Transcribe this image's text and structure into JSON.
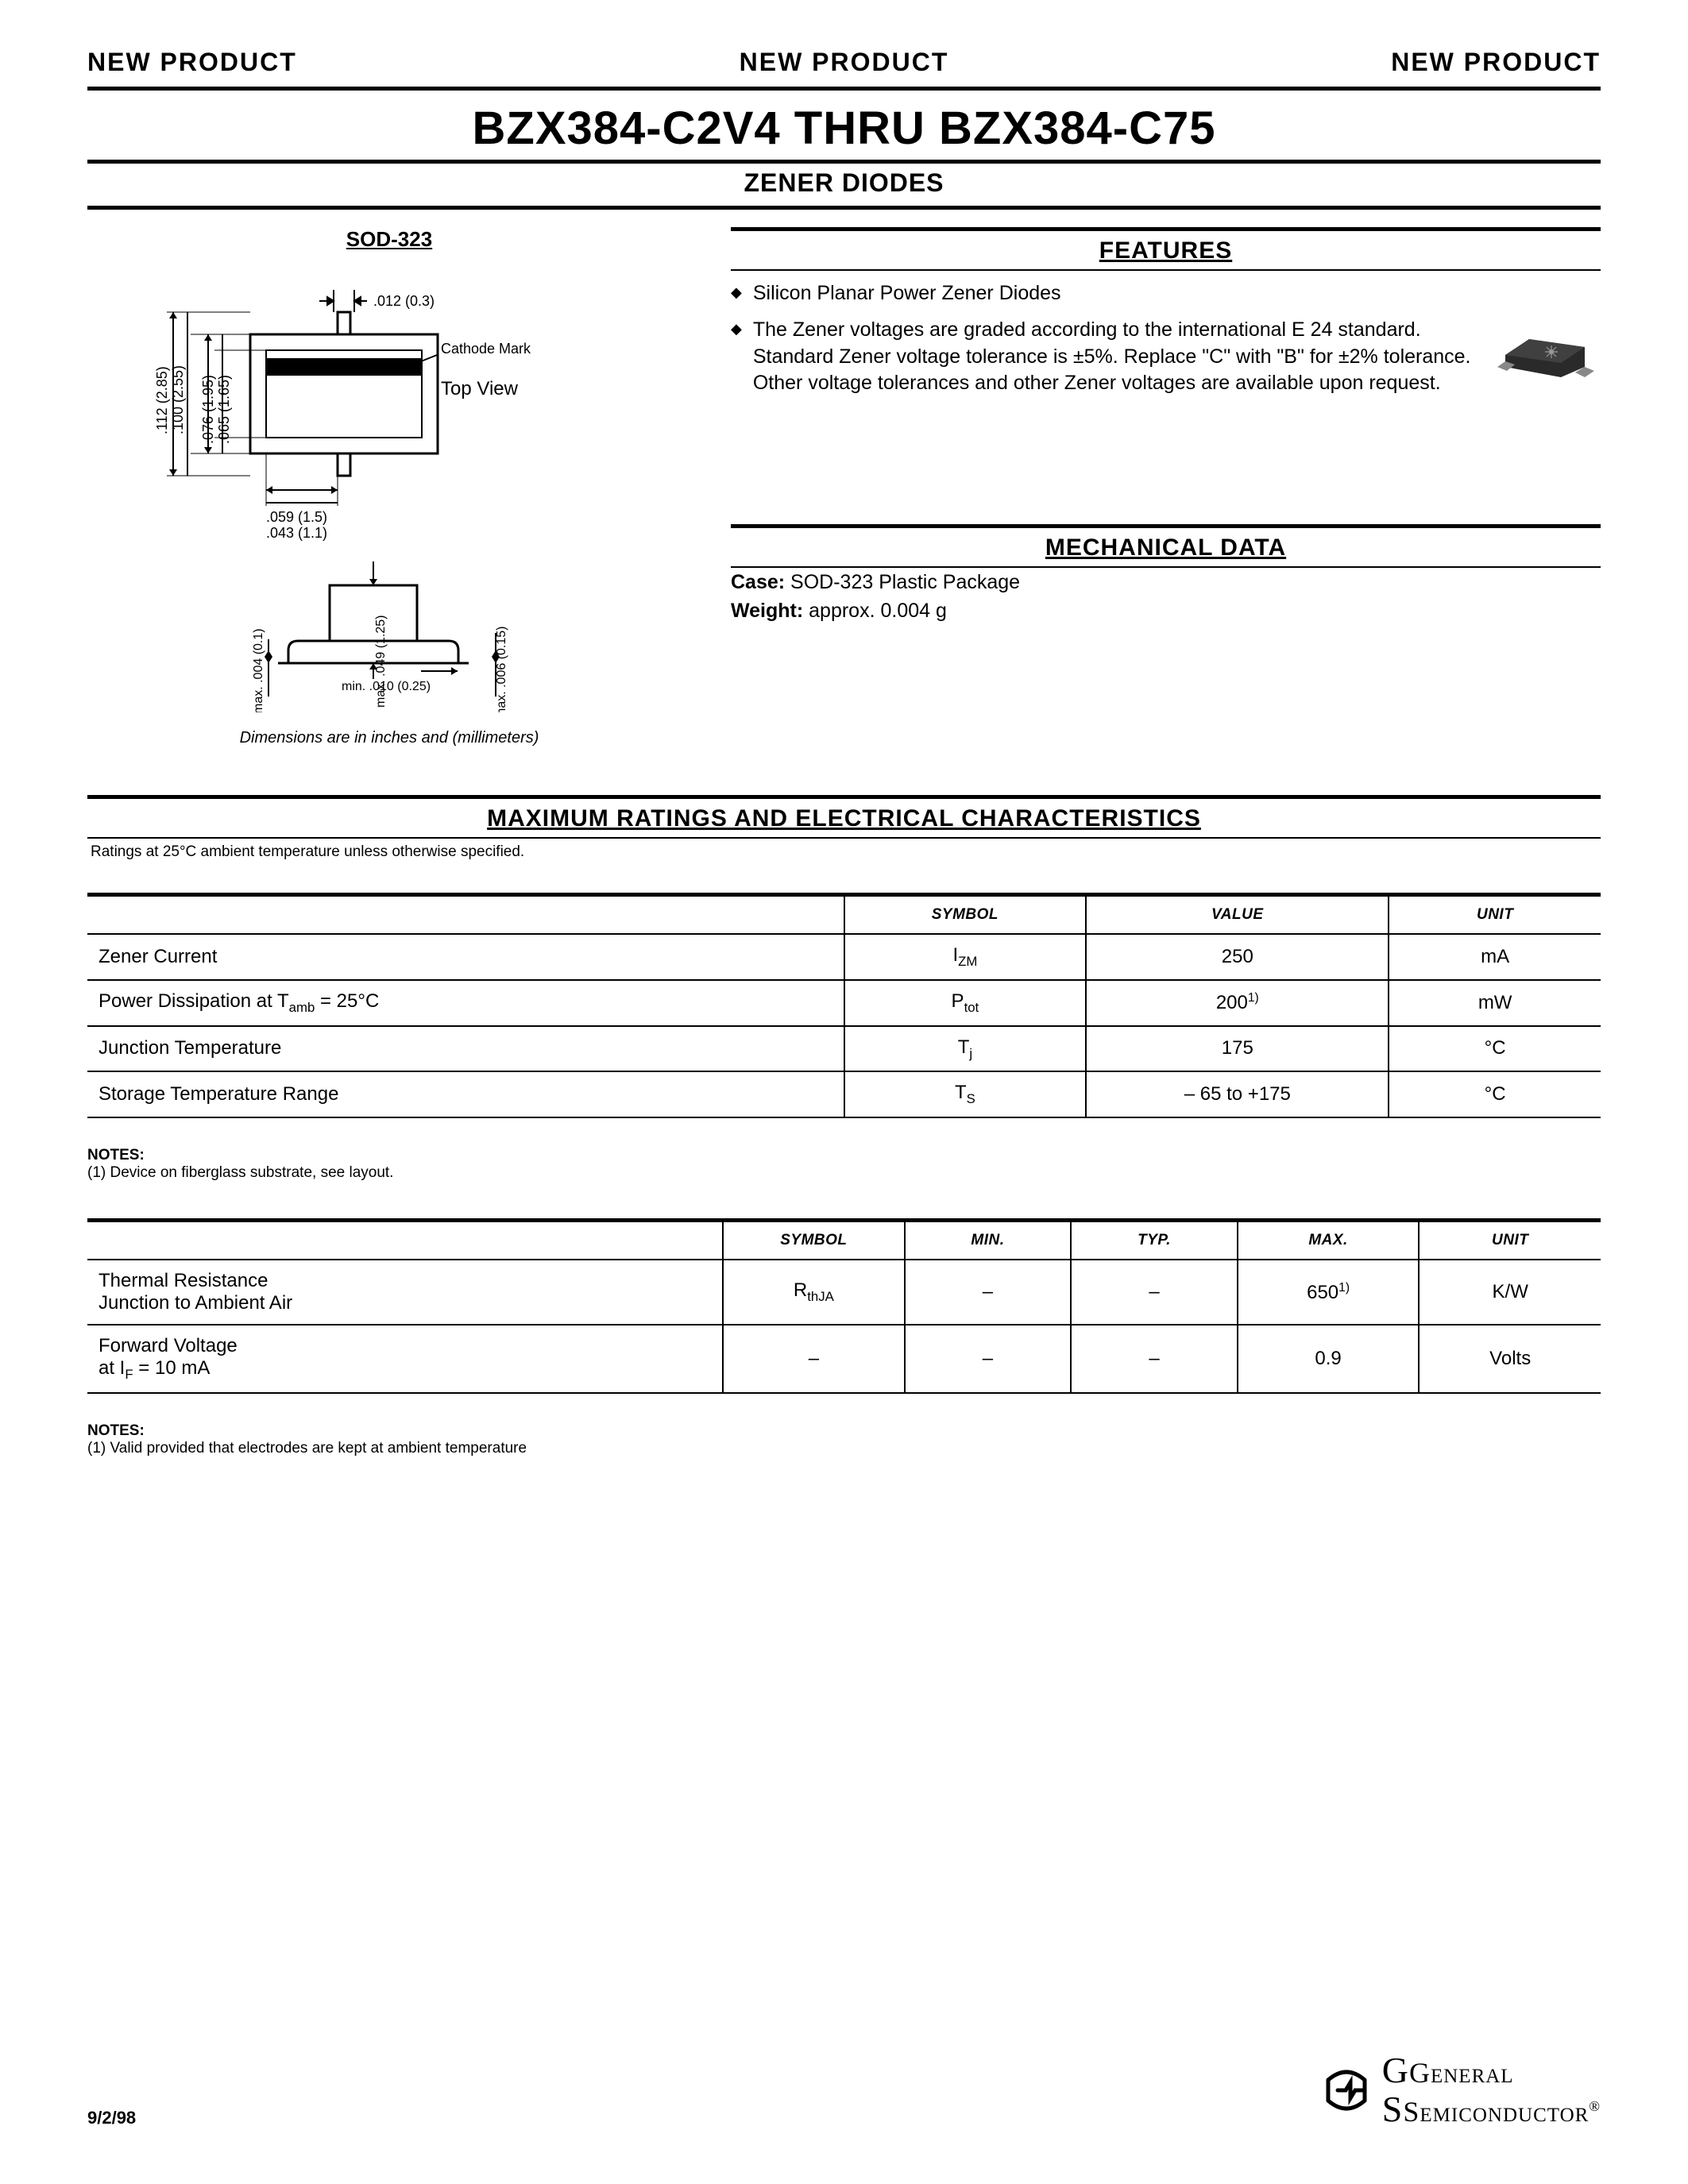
{
  "banner": {
    "left": "NEW PRODUCT",
    "center": "NEW PRODUCT",
    "right": "NEW PRODUCT"
  },
  "title": "BZX384-C2V4 THRU BZX384-C75",
  "subtitle": "ZENER DIODES",
  "package": {
    "label": "SOD-323",
    "top_view": "Top View",
    "cathode_mark": "Cathode Mark",
    "dims": {
      "d_012": ".012 (0.3)",
      "d_112": ".112 (2.85)",
      "d_100": ".100 (2.55)",
      "d_076": ".076 (1.95)",
      "d_065": ".065 (1.65)",
      "d_059": ".059 (1.5)",
      "d_043": ".043 (1.1)",
      "d_max004": "max. .004 (0.1)",
      "d_max049": "max. .049 (1.25)",
      "d_max006": "max. .006 (0.15)",
      "d_min010": "min. .010 (0.25)"
    },
    "dim_note": "Dimensions are in inches and (millimeters)"
  },
  "features": {
    "heading": "FEATURES",
    "items": [
      "Silicon Planar Power Zener Diodes",
      "The Zener voltages are graded according to the international E 24 standard. Standard Zener voltage tolerance is ±5%. Replace \"C\" with \"B\" for ±2% tolerance. Other voltage tolerances and other Zener voltages are available upon request."
    ]
  },
  "mechanical": {
    "heading": "MECHANICAL DATA",
    "case_label": "Case:",
    "case_value": "SOD-323 Plastic Package",
    "weight_label": "Weight:",
    "weight_value": "approx. 0.004 g"
  },
  "ratings": {
    "heading": "MAXIMUM RATINGS AND ELECTRICAL CHARACTERISTICS",
    "condition": "Ratings at 25°C ambient temperature unless otherwise specified.",
    "table1": {
      "columns": [
        "",
        "SYMBOL",
        "VALUE",
        "UNIT"
      ],
      "rows": [
        {
          "param": "Zener Current",
          "symbol_html": "I<span class='sub'>ZM</span>",
          "value": "250",
          "unit": "mA"
        },
        {
          "param_html": "Power Dissipation at T<span class='sub'>amb</span> = 25°C",
          "symbol_html": "P<span class='sub'>tot</span>",
          "value_html": "200<span class='sup'>1)</span>",
          "unit": "mW"
        },
        {
          "param": "Junction Temperature",
          "symbol_html": "T<span class='sub'>j</span>",
          "value": "175",
          "unit": "°C"
        },
        {
          "param": "Storage Temperature Range",
          "symbol_html": "T<span class='sub'>S</span>",
          "value": "– 65 to +175",
          "unit": "°C"
        }
      ]
    },
    "notes1": {
      "hd": "NOTES:",
      "n1": "(1) Device on fiberglass substrate, see layout."
    },
    "table2": {
      "columns": [
        "",
        "SYMBOL",
        "MIN.",
        "TYP.",
        "MAX.",
        "UNIT"
      ],
      "rows": [
        {
          "param_html": "Thermal Resistance<br>Junction to Ambient Air",
          "symbol_html": "R<span class='sub'>thJA</span>",
          "min": "–",
          "typ": "–",
          "max_html": "650<span class='sup'>1)</span>",
          "unit": "K/W"
        },
        {
          "param_html": "Forward Voltage<br>at I<span class='sub'>F</span> = 10 mA",
          "symbol": "–",
          "min": "–",
          "typ": "–",
          "max": "0.9",
          "unit": "Volts"
        }
      ]
    },
    "notes2": {
      "hd": "NOTES:",
      "n1": "(1) Valid provided that electrodes are kept at ambient temperature"
    }
  },
  "footer": {
    "date": "9/2/98",
    "company1": "General",
    "company2": "Semiconductor",
    "reg": "®"
  },
  "colors": {
    "text": "#000000",
    "bg": "#ffffff",
    "chip_dark": "#2a2a2a",
    "chip_grey": "#555555"
  }
}
